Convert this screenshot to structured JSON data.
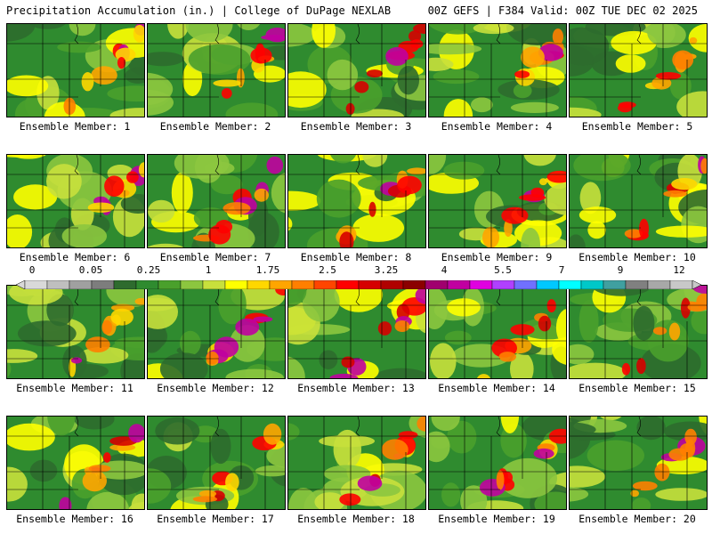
{
  "header": {
    "left": "Precipitation Accumulation (in.) | College of DuPage NEXLAB",
    "right": "00Z GEFS | F384 Valid: 00Z TUE DEC 02 2025"
  },
  "members": [
    "Ensemble Member: 1",
    "Ensemble Member: 2",
    "Ensemble Member: 3",
    "Ensemble Member: 4",
    "Ensemble Member: 5",
    "Ensemble Member: 6",
    "Ensemble Member: 7",
    "Ensemble Member: 8",
    "Ensemble Member: 9",
    "Ensemble Member: 10",
    "Ensemble Member: 11",
    "Ensemble Member: 12",
    "Ensemble Member: 13",
    "Ensemble Member: 14",
    "Ensemble Member: 15",
    "Ensemble Member: 16",
    "Ensemble Member: 17",
    "Ensemble Member: 18",
    "Ensemble Member: 19",
    "Ensemble Member: 20"
  ],
  "colorbar": {
    "tick_labels": [
      "0",
      "0.05",
      "0.25",
      "1",
      "1.75",
      "2.5",
      "3.25",
      "4",
      "5.5",
      "7",
      "9",
      "12"
    ],
    "colors": [
      "#d9d9d9",
      "#bfbfbf",
      "#a0a0a0",
      "#7d7d7d",
      "#2e6b2e",
      "#2f8b2f",
      "#4aa02c",
      "#8cc63f",
      "#c8e03c",
      "#ffff00",
      "#ffd700",
      "#ffa500",
      "#ff7f00",
      "#ff4500",
      "#ff0000",
      "#d60000",
      "#b00000",
      "#8b0000",
      "#a0006e",
      "#c000a0",
      "#e000e0",
      "#b040ff",
      "#7070ff",
      "#00c8ff",
      "#00ffff",
      "#00c8c8",
      "#40a0a0",
      "#808080",
      "#a8a8a8",
      "#c8c8c8"
    ]
  }
}
